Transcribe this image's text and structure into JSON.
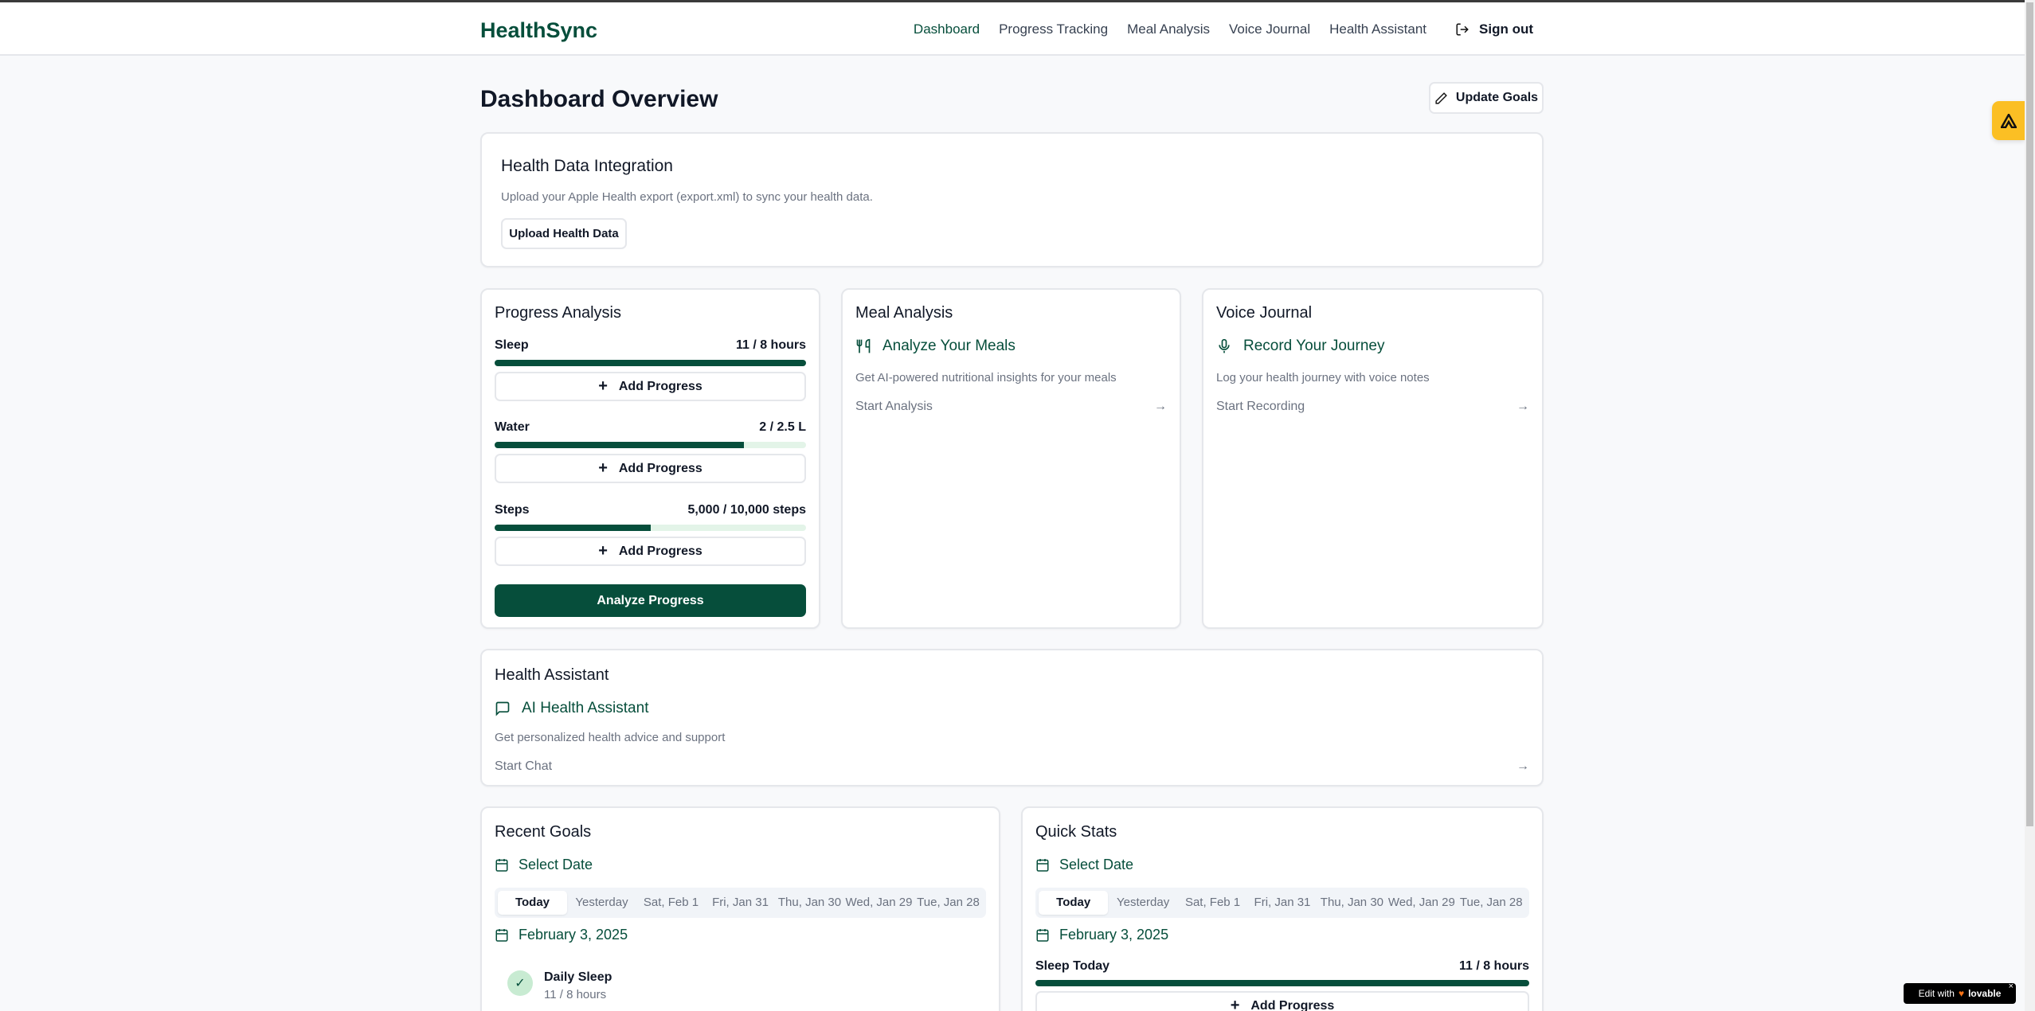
{
  "header": {
    "logo": "HealthSync",
    "nav": [
      {
        "label": "Dashboard",
        "active": true
      },
      {
        "label": "Progress Tracking"
      },
      {
        "label": "Meal Analysis"
      },
      {
        "label": "Voice Journal"
      },
      {
        "label": "Health Assistant"
      }
    ],
    "signout": "Sign out"
  },
  "page": {
    "title": "Dashboard Overview",
    "update_goals": "Update Goals"
  },
  "integration": {
    "title": "Health Data Integration",
    "desc": "Upload your Apple Health export (export.xml) to sync your health data.",
    "button": "Upload Health Data"
  },
  "progress": {
    "title": "Progress Analysis",
    "items": [
      {
        "label": "Sleep",
        "value": "11 / 8 hours",
        "percent": 100
      },
      {
        "label": "Water",
        "value": "2 / 2.5 L",
        "percent": 80
      },
      {
        "label": "Steps",
        "value": "5,000 / 10,000 steps",
        "percent": 50
      }
    ],
    "add": "Add Progress",
    "analyze": "Analyze Progress"
  },
  "meal": {
    "title": "Meal Analysis",
    "feature": "Analyze Your Meals",
    "desc": "Get AI-powered nutritional insights for your meals",
    "link": "Start Analysis"
  },
  "voice": {
    "title": "Voice Journal",
    "feature": "Record Your Journey",
    "desc": "Log your health journey with voice notes",
    "link": "Start Recording"
  },
  "assistant": {
    "title": "Health Assistant",
    "feature": "AI Health Assistant",
    "desc": "Get personalized health advice and support",
    "link": "Start Chat"
  },
  "date_tabs": [
    "Today",
    "Yesterday",
    "Sat, Feb 1",
    "Fri, Jan 31",
    "Thu, Jan 30",
    "Wed, Jan 29",
    "Tue, Jan 28"
  ],
  "recent": {
    "title": "Recent Goals",
    "select": "Select Date",
    "date": "February 3, 2025",
    "goal_name": "Daily Sleep",
    "goal_value": "11 / 8 hours"
  },
  "quick": {
    "title": "Quick Stats",
    "select": "Select Date",
    "date": "February 3, 2025",
    "stat_label": "Sleep Today",
    "stat_value": "11 / 8 hours",
    "stat_percent": 100,
    "add": "Add Progress"
  },
  "badge": {
    "text": "Edit with",
    "brand": "lovable",
    "close": "×"
  },
  "colors": {
    "primary": "#064e3b",
    "track": "#e3f4e8",
    "fab": "#fbbf24"
  }
}
